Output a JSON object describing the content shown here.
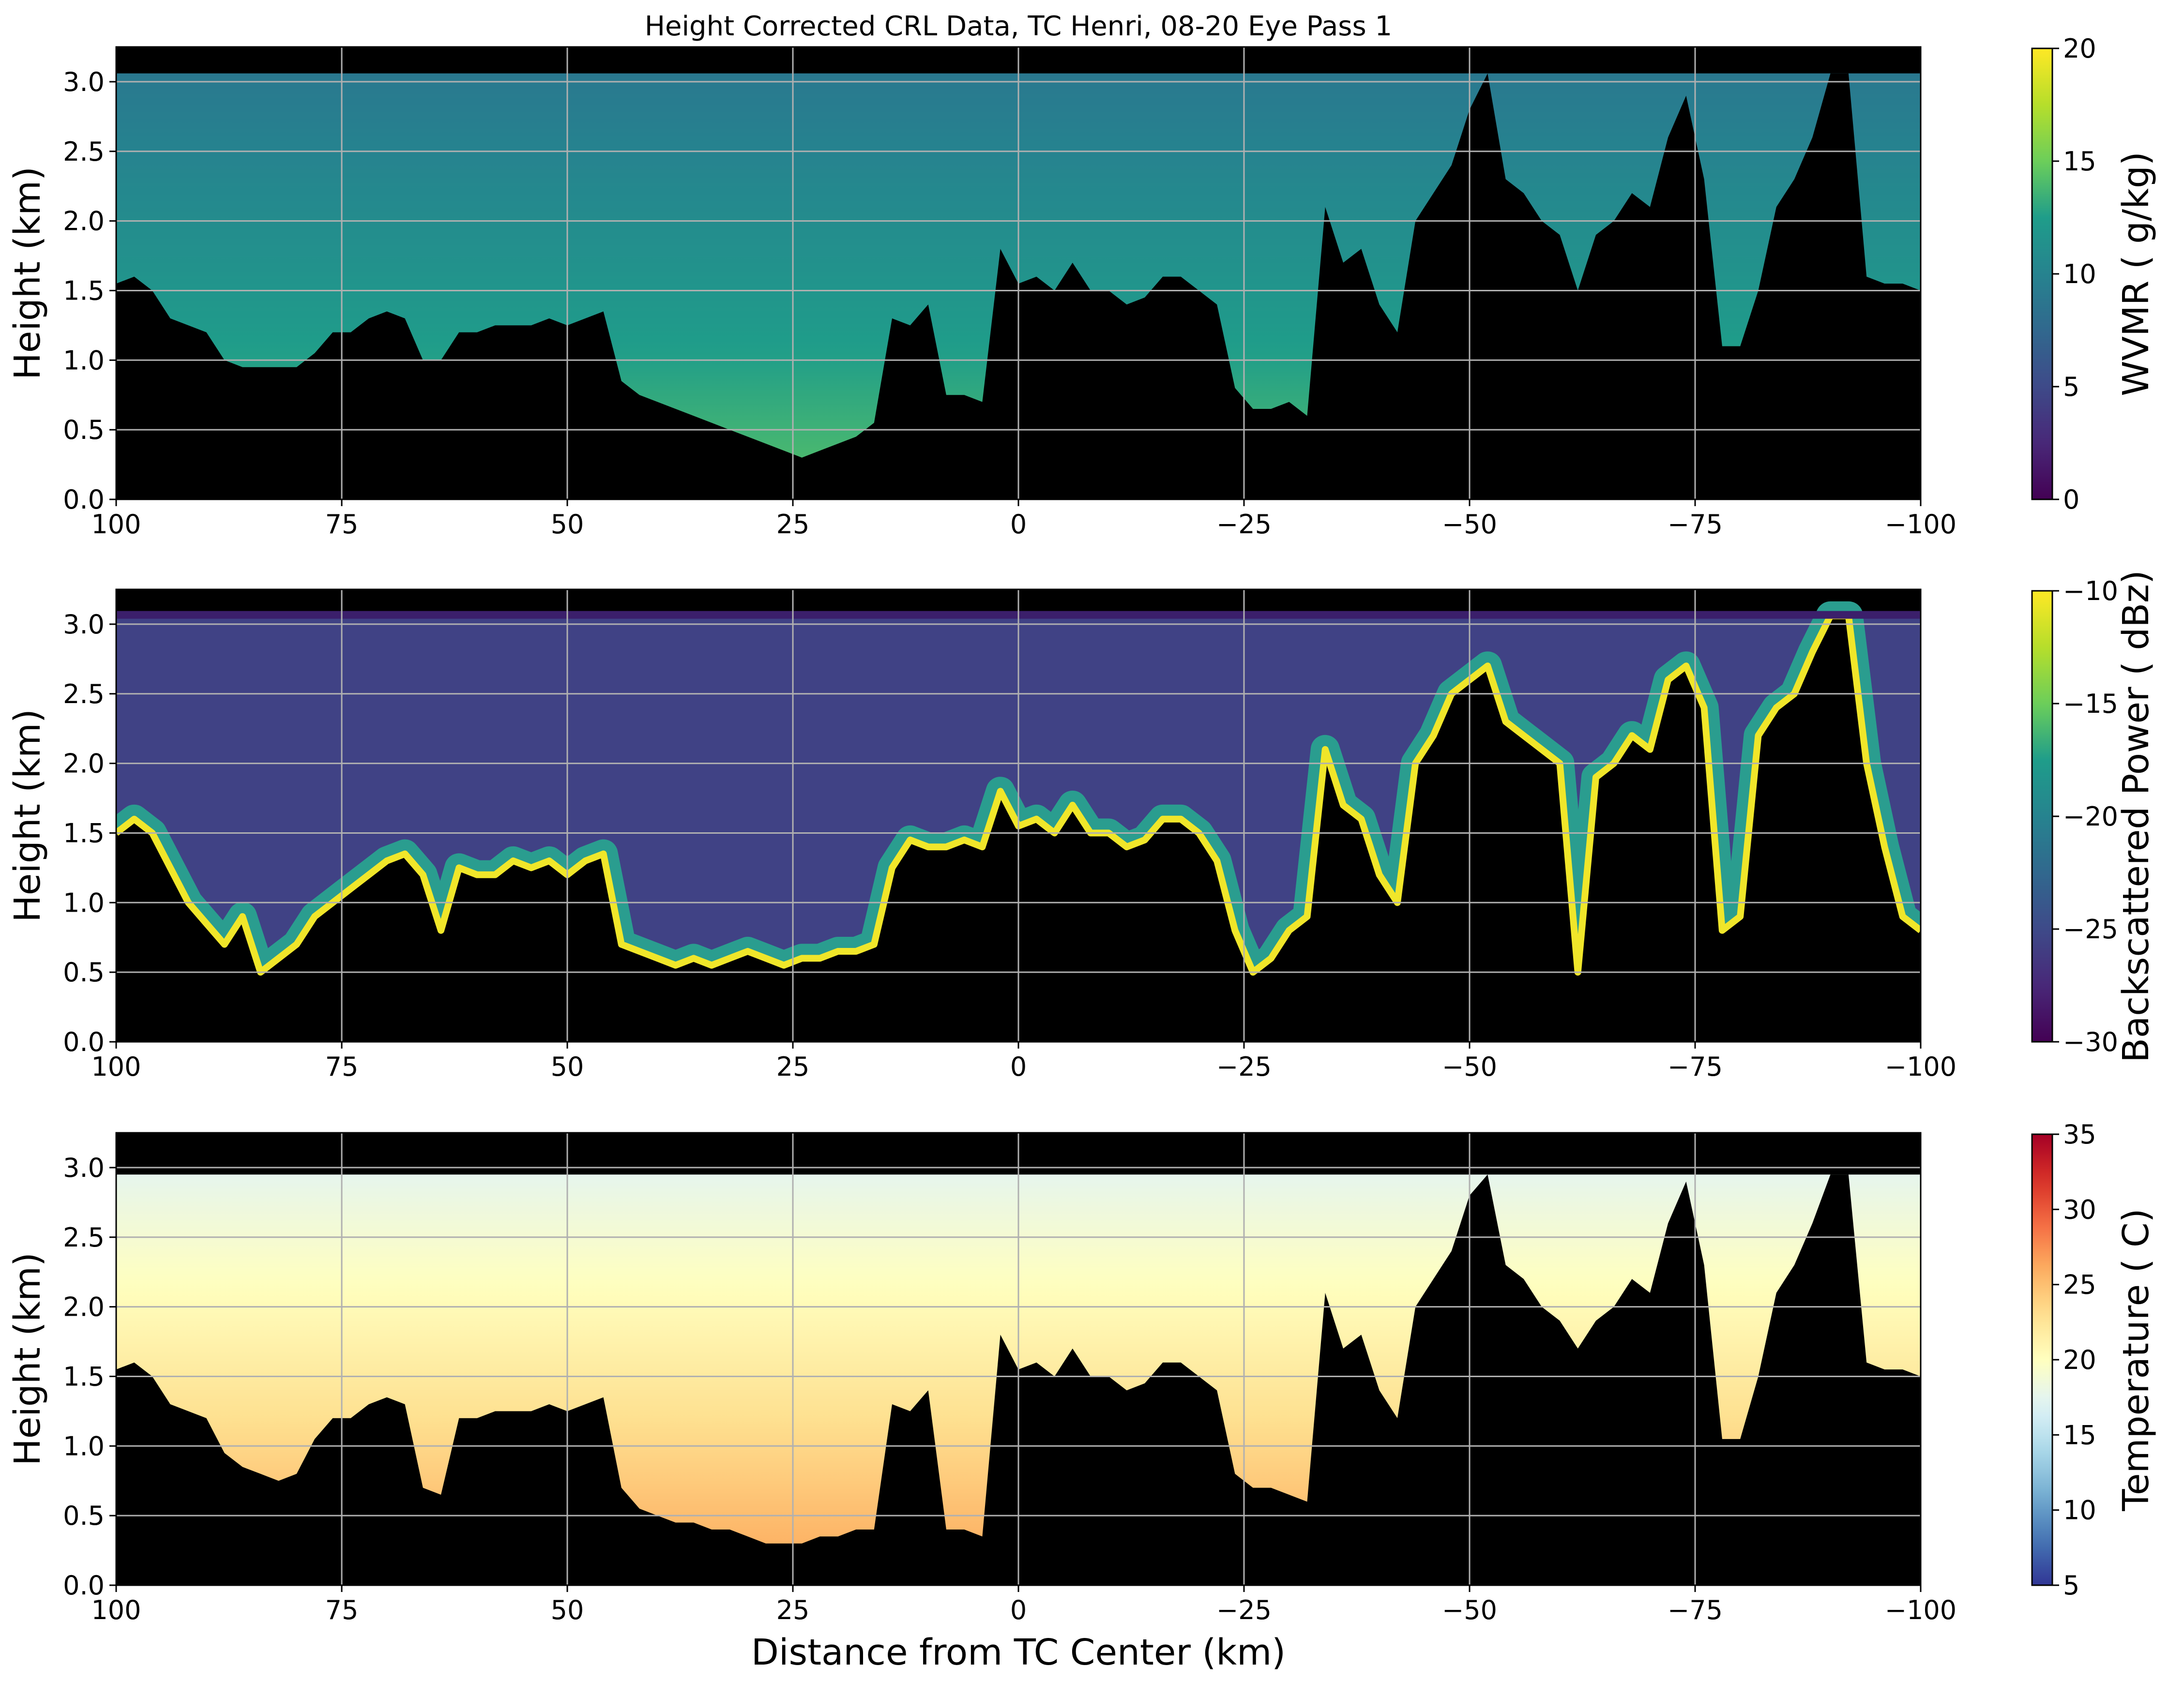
{
  "figure": {
    "title": "Height Corrected CRL Data, TC Henri, 08-20 Eye Pass 1",
    "xlabel": "Distance from TC Center (km)"
  },
  "chart_data": [
    {
      "type": "heatmap",
      "ylabel": "Height (km)",
      "colorbar_label": "WVMR ( g/kg)",
      "colormap": "viridis",
      "xlim": [
        100,
        -100
      ],
      "ylim": [
        0,
        3.25
      ],
      "clim": [
        0,
        20
      ],
      "x_ticks": [
        100,
        75,
        50,
        25,
        0,
        -25,
        -50,
        -75,
        -100
      ],
      "x_tick_labels": [
        "100",
        "75",
        "50",
        "25",
        "0",
        "−25",
        "−50",
        "−75",
        "−100"
      ],
      "y_ticks": [
        0.0,
        0.5,
        1.0,
        1.5,
        2.0,
        2.5,
        3.0
      ],
      "y_tick_labels": [
        "0.0",
        "0.5",
        "1.0",
        "1.5",
        "2.0",
        "2.5",
        "3.0"
      ],
      "colorbar_ticks": [
        0,
        5,
        10,
        15,
        20
      ],
      "colorbar_tick_labels": [
        "0",
        "5",
        "10",
        "15",
        "20"
      ],
      "grid": true,
      "data_top_km": 3.06,
      "lowest_valid_height_km": [
        [
          100,
          1.55
        ],
        [
          98,
          1.6
        ],
        [
          96,
          1.5
        ],
        [
          94,
          1.3
        ],
        [
          92,
          1.25
        ],
        [
          90,
          1.2
        ],
        [
          88,
          1.0
        ],
        [
          86,
          0.95
        ],
        [
          84,
          0.95
        ],
        [
          82,
          0.95
        ],
        [
          80,
          0.95
        ],
        [
          78,
          1.05
        ],
        [
          76,
          1.2
        ],
        [
          74,
          1.2
        ],
        [
          72,
          1.3
        ],
        [
          70,
          1.35
        ],
        [
          68,
          1.3
        ],
        [
          66,
          1.0
        ],
        [
          64,
          1.0
        ],
        [
          62,
          1.2
        ],
        [
          60,
          1.2
        ],
        [
          58,
          1.25
        ],
        [
          56,
          1.25
        ],
        [
          54,
          1.25
        ],
        [
          52,
          1.3
        ],
        [
          50,
          1.25
        ],
        [
          48,
          1.3
        ],
        [
          46,
          1.35
        ],
        [
          44,
          0.85
        ],
        [
          42,
          0.75
        ],
        [
          40,
          0.7
        ],
        [
          38,
          0.65
        ],
        [
          36,
          0.6
        ],
        [
          34,
          0.55
        ],
        [
          32,
          0.5
        ],
        [
          30,
          0.45
        ],
        [
          28,
          0.4
        ],
        [
          26,
          0.35
        ],
        [
          24,
          0.3
        ],
        [
          22,
          0.35
        ],
        [
          20,
          0.4
        ],
        [
          18,
          0.45
        ],
        [
          16,
          0.55
        ],
        [
          14,
          1.3
        ],
        [
          12,
          1.25
        ],
        [
          10,
          1.4
        ],
        [
          8,
          0.75
        ],
        [
          6,
          0.75
        ],
        [
          4,
          0.7
        ],
        [
          2,
          1.8
        ],
        [
          0,
          1.55
        ],
        [
          -2,
          1.6
        ],
        [
          -4,
          1.5
        ],
        [
          -6,
          1.7
        ],
        [
          -8,
          1.5
        ],
        [
          -10,
          1.5
        ],
        [
          -12,
          1.4
        ],
        [
          -14,
          1.45
        ],
        [
          -16,
          1.6
        ],
        [
          -18,
          1.6
        ],
        [
          -20,
          1.5
        ],
        [
          -22,
          1.4
        ],
        [
          -24,
          0.8
        ],
        [
          -26,
          0.65
        ],
        [
          -28,
          0.65
        ],
        [
          -30,
          0.7
        ],
        [
          -32,
          0.6
        ],
        [
          -34,
          2.1
        ],
        [
          -36,
          1.7
        ],
        [
          -38,
          1.8
        ],
        [
          -40,
          1.4
        ],
        [
          -42,
          1.2
        ],
        [
          -44,
          2.0
        ],
        [
          -46,
          2.2
        ],
        [
          -48,
          2.4
        ],
        [
          -50,
          2.8
        ],
        [
          -52,
          3.06
        ],
        [
          -54,
          2.3
        ],
        [
          -56,
          2.2
        ],
        [
          -58,
          2.0
        ],
        [
          -60,
          1.9
        ],
        [
          -62,
          1.5
        ],
        [
          -64,
          1.9
        ],
        [
          -66,
          2.0
        ],
        [
          -68,
          2.2
        ],
        [
          -70,
          2.1
        ],
        [
          -72,
          2.6
        ],
        [
          -74,
          2.9
        ],
        [
          -76,
          2.3
        ],
        [
          -78,
          1.1
        ],
        [
          -80,
          1.1
        ],
        [
          -82,
          1.5
        ],
        [
          -84,
          2.1
        ],
        [
          -86,
          2.3
        ],
        [
          -88,
          2.6
        ],
        [
          -90,
          3.06
        ],
        [
          -92,
          3.06
        ],
        [
          -94,
          1.6
        ],
        [
          -96,
          1.55
        ],
        [
          -98,
          1.55
        ],
        [
          -100,
          1.5
        ]
      ]
    },
    {
      "type": "heatmap",
      "ylabel": "Height (km)",
      "colorbar_label": "Backscattered Power ( dBz)",
      "colormap": "viridis",
      "xlim": [
        100,
        -100
      ],
      "ylim": [
        0,
        3.25
      ],
      "clim": [
        -30,
        -10
      ],
      "x_ticks": [
        100,
        75,
        50,
        25,
        0,
        -25,
        -50,
        -75,
        -100
      ],
      "x_tick_labels": [
        "100",
        "75",
        "50",
        "25",
        "0",
        "−25",
        "−50",
        "−75",
        "−100"
      ],
      "y_ticks": [
        0.0,
        0.5,
        1.0,
        1.5,
        2.0,
        2.5,
        3.0
      ],
      "y_tick_labels": [
        "0.0",
        "0.5",
        "1.0",
        "1.5",
        "2.0",
        "2.5",
        "3.0"
      ],
      "colorbar_ticks": [
        -30,
        -25,
        -20,
        -15,
        -10
      ],
      "colorbar_tick_labels": [
        "−30",
        "−25",
        "−20",
        "−15",
        "−10"
      ],
      "grid": true,
      "data_top_km": 3.06,
      "cloud_top_height_km": [
        [
          100,
          1.5
        ],
        [
          98,
          1.6
        ],
        [
          96,
          1.5
        ],
        [
          94,
          1.25
        ],
        [
          92,
          1.0
        ],
        [
          90,
          0.85
        ],
        [
          88,
          0.7
        ],
        [
          86,
          0.9
        ],
        [
          84,
          0.5
        ],
        [
          82,
          0.6
        ],
        [
          80,
          0.7
        ],
        [
          78,
          0.9
        ],
        [
          76,
          1.0
        ],
        [
          74,
          1.1
        ],
        [
          72,
          1.2
        ],
        [
          70,
          1.3
        ],
        [
          68,
          1.35
        ],
        [
          66,
          1.2
        ],
        [
          64,
          0.8
        ],
        [
          62,
          1.25
        ],
        [
          60,
          1.2
        ],
        [
          58,
          1.2
        ],
        [
          56,
          1.3
        ],
        [
          54,
          1.25
        ],
        [
          52,
          1.3
        ],
        [
          50,
          1.2
        ],
        [
          48,
          1.3
        ],
        [
          46,
          1.35
        ],
        [
          44,
          0.7
        ],
        [
          42,
          0.65
        ],
        [
          40,
          0.6
        ],
        [
          38,
          0.55
        ],
        [
          36,
          0.6
        ],
        [
          34,
          0.55
        ],
        [
          32,
          0.6
        ],
        [
          30,
          0.65
        ],
        [
          28,
          0.6
        ],
        [
          26,
          0.55
        ],
        [
          24,
          0.6
        ],
        [
          22,
          0.6
        ],
        [
          20,
          0.65
        ],
        [
          18,
          0.65
        ],
        [
          16,
          0.7
        ],
        [
          14,
          1.25
        ],
        [
          12,
          1.45
        ],
        [
          10,
          1.4
        ],
        [
          8,
          1.4
        ],
        [
          6,
          1.45
        ],
        [
          4,
          1.4
        ],
        [
          2,
          1.8
        ],
        [
          0,
          1.55
        ],
        [
          -2,
          1.6
        ],
        [
          -4,
          1.5
        ],
        [
          -6,
          1.7
        ],
        [
          -8,
          1.5
        ],
        [
          -10,
          1.5
        ],
        [
          -12,
          1.4
        ],
        [
          -14,
          1.45
        ],
        [
          -16,
          1.6
        ],
        [
          -18,
          1.6
        ],
        [
          -20,
          1.5
        ],
        [
          -22,
          1.3
        ],
        [
          -24,
          0.8
        ],
        [
          -26,
          0.5
        ],
        [
          -28,
          0.6
        ],
        [
          -30,
          0.8
        ],
        [
          -32,
          0.9
        ],
        [
          -34,
          2.1
        ],
        [
          -36,
          1.7
        ],
        [
          -38,
          1.6
        ],
        [
          -40,
          1.2
        ],
        [
          -42,
          1.0
        ],
        [
          -44,
          2.0
        ],
        [
          -46,
          2.2
        ],
        [
          -48,
          2.5
        ],
        [
          -50,
          2.6
        ],
        [
          -52,
          2.7
        ],
        [
          -54,
          2.3
        ],
        [
          -56,
          2.2
        ],
        [
          -58,
          2.1
        ],
        [
          -60,
          2.0
        ],
        [
          -62,
          0.5
        ],
        [
          -64,
          1.9
        ],
        [
          -66,
          2.0
        ],
        [
          -68,
          2.2
        ],
        [
          -70,
          2.1
        ],
        [
          -72,
          2.6
        ],
        [
          -74,
          2.7
        ],
        [
          -76,
          2.4
        ],
        [
          -78,
          0.8
        ],
        [
          -80,
          0.9
        ],
        [
          -82,
          2.2
        ],
        [
          -84,
          2.4
        ],
        [
          -86,
          2.5
        ],
        [
          -88,
          2.8
        ],
        [
          -90,
          3.06
        ],
        [
          -92,
          3.06
        ],
        [
          -94,
          2.0
        ],
        [
          -96,
          1.4
        ],
        [
          -98,
          0.9
        ],
        [
          -100,
          0.8
        ]
      ]
    },
    {
      "type": "heatmap",
      "ylabel": "Height (km)",
      "colorbar_label": "Temperature ( C)",
      "colormap": "RdYlBu_r",
      "xlim": [
        100,
        -100
      ],
      "ylim": [
        0,
        3.25
      ],
      "clim": [
        5,
        35
      ],
      "x_ticks": [
        100,
        75,
        50,
        25,
        0,
        -25,
        -50,
        -75,
        -100
      ],
      "x_tick_labels": [
        "100",
        "75",
        "50",
        "25",
        "0",
        "−25",
        "−50",
        "−75",
        "−100"
      ],
      "y_ticks": [
        0.0,
        0.5,
        1.0,
        1.5,
        2.0,
        2.5,
        3.0
      ],
      "y_tick_labels": [
        "0.0",
        "0.5",
        "1.0",
        "1.5",
        "2.0",
        "2.5",
        "3.0"
      ],
      "colorbar_ticks": [
        5,
        10,
        15,
        20,
        25,
        30,
        35
      ],
      "colorbar_tick_labels": [
        "5",
        "10",
        "15",
        "20",
        "25",
        "30",
        "35"
      ],
      "grid": true,
      "data_top_km": 2.95,
      "lowest_valid_height_km": [
        [
          100,
          1.55
        ],
        [
          98,
          1.6
        ],
        [
          96,
          1.5
        ],
        [
          94,
          1.3
        ],
        [
          92,
          1.25
        ],
        [
          90,
          1.2
        ],
        [
          88,
          0.95
        ],
        [
          86,
          0.85
        ],
        [
          84,
          0.8
        ],
        [
          82,
          0.75
        ],
        [
          80,
          0.8
        ],
        [
          78,
          1.05
        ],
        [
          76,
          1.2
        ],
        [
          74,
          1.2
        ],
        [
          72,
          1.3
        ],
        [
          70,
          1.35
        ],
        [
          68,
          1.3
        ],
        [
          66,
          0.7
        ],
        [
          64,
          0.65
        ],
        [
          62,
          1.2
        ],
        [
          60,
          1.2
        ],
        [
          58,
          1.25
        ],
        [
          56,
          1.25
        ],
        [
          54,
          1.25
        ],
        [
          52,
          1.3
        ],
        [
          50,
          1.25
        ],
        [
          48,
          1.3
        ],
        [
          46,
          1.35
        ],
        [
          44,
          0.7
        ],
        [
          42,
          0.55
        ],
        [
          40,
          0.5
        ],
        [
          38,
          0.45
        ],
        [
          36,
          0.45
        ],
        [
          34,
          0.4
        ],
        [
          32,
          0.4
        ],
        [
          30,
          0.35
        ],
        [
          28,
          0.3
        ],
        [
          26,
          0.3
        ],
        [
          24,
          0.3
        ],
        [
          22,
          0.35
        ],
        [
          20,
          0.35
        ],
        [
          18,
          0.4
        ],
        [
          16,
          0.4
        ],
        [
          14,
          1.3
        ],
        [
          12,
          1.25
        ],
        [
          10,
          1.4
        ],
        [
          8,
          0.4
        ],
        [
          6,
          0.4
        ],
        [
          4,
          0.35
        ],
        [
          2,
          1.8
        ],
        [
          0,
          1.55
        ],
        [
          -2,
          1.6
        ],
        [
          -4,
          1.5
        ],
        [
          -6,
          1.7
        ],
        [
          -8,
          1.5
        ],
        [
          -10,
          1.5
        ],
        [
          -12,
          1.4
        ],
        [
          -14,
          1.45
        ],
        [
          -16,
          1.6
        ],
        [
          -18,
          1.6
        ],
        [
          -20,
          1.5
        ],
        [
          -22,
          1.4
        ],
        [
          -24,
          0.8
        ],
        [
          -26,
          0.7
        ],
        [
          -28,
          0.7
        ],
        [
          -30,
          0.65
        ],
        [
          -32,
          0.6
        ],
        [
          -34,
          2.1
        ],
        [
          -36,
          1.7
        ],
        [
          -38,
          1.8
        ],
        [
          -40,
          1.4
        ],
        [
          -42,
          1.2
        ],
        [
          -44,
          2.0
        ],
        [
          -46,
          2.2
        ],
        [
          -48,
          2.4
        ],
        [
          -50,
          2.8
        ],
        [
          -52,
          2.95
        ],
        [
          -54,
          2.3
        ],
        [
          -56,
          2.2
        ],
        [
          -58,
          2.0
        ],
        [
          -60,
          1.9
        ],
        [
          -62,
          1.7
        ],
        [
          -64,
          1.9
        ],
        [
          -66,
          2.0
        ],
        [
          -68,
          2.2
        ],
        [
          -70,
          2.1
        ],
        [
          -72,
          2.6
        ],
        [
          -74,
          2.9
        ],
        [
          -76,
          2.3
        ],
        [
          -78,
          1.05
        ],
        [
          -80,
          1.05
        ],
        [
          -82,
          1.5
        ],
        [
          -84,
          2.1
        ],
        [
          -86,
          2.3
        ],
        [
          -88,
          2.6
        ],
        [
          -90,
          2.95
        ],
        [
          -92,
          2.95
        ],
        [
          -94,
          1.6
        ],
        [
          -96,
          1.55
        ],
        [
          -98,
          1.55
        ],
        [
          -100,
          1.5
        ]
      ]
    }
  ]
}
